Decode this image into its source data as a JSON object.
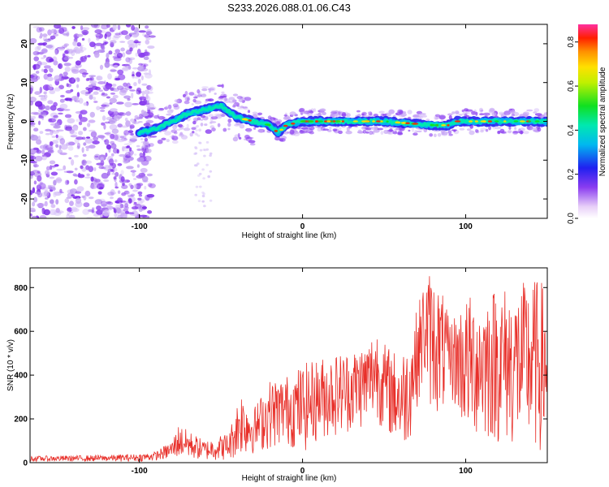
{
  "title": "S233.2026.088.01.06.C43",
  "chart_data": [
    {
      "type": "heatmap",
      "name": "spectrogram",
      "xlabel": "Height of straight line (km)",
      "ylabel": "Frequency (Hz)",
      "xlim": [
        -167,
        150
      ],
      "ylim": [
        -25,
        25
      ],
      "xticks": [
        -100,
        0,
        100
      ],
      "yticks": [
        -20,
        -10,
        0,
        10,
        20
      ],
      "colorbar": {
        "label": "Normalized spectral amplitude",
        "range": [
          0,
          0.88
        ],
        "ticks": [
          0.0,
          0.2,
          0.4,
          0.6,
          0.8
        ]
      },
      "ridge": {
        "x": [
          -100,
          -90,
          -80,
          -70,
          -60,
          -50,
          -40,
          -30,
          -20,
          -15,
          -10,
          0,
          20,
          50,
          80,
          90,
          95,
          100,
          120,
          150
        ],
        "freq": [
          -3,
          -2,
          0,
          2,
          3,
          4,
          1,
          0,
          -1,
          -3,
          -1,
          0,
          0,
          0,
          -1,
          -1,
          0,
          0,
          0,
          0
        ]
      }
    },
    {
      "type": "line",
      "name": "snr",
      "xlabel": "Height of straight line (km)",
      "ylabel": "SNR (10 * v/v)",
      "xlim": [
        -167,
        150
      ],
      "ylim": [
        0,
        890
      ],
      "xticks": [
        -100,
        0,
        100
      ],
      "yticks": [
        0,
        200,
        400,
        600,
        800
      ],
      "color": "#e8302a",
      "envelope": {
        "x": [
          -167,
          -120,
          -100,
          -90,
          -80,
          -76,
          -60,
          -45,
          -38,
          -30,
          -20,
          -10,
          0,
          10,
          20,
          30,
          40,
          45,
          50,
          55,
          60,
          65,
          70,
          75,
          78,
          85,
          90,
          100,
          110,
          120,
          130,
          140,
          150
        ],
        "upper": [
          30,
          35,
          40,
          50,
          100,
          175,
          100,
          140,
          340,
          250,
          380,
          400,
          450,
          480,
          500,
          520,
          560,
          640,
          550,
          520,
          500,
          560,
          700,
          860,
          880,
          800,
          650,
          760,
          780,
          820,
          800,
          850,
          820
        ],
        "lower": [
          5,
          5,
          5,
          10,
          15,
          20,
          10,
          10,
          30,
          40,
          60,
          80,
          40,
          100,
          120,
          140,
          160,
          200,
          140,
          100,
          60,
          80,
          250,
          350,
          250,
          200,
          300,
          120,
          100,
          80,
          60,
          40,
          40
        ]
      }
    }
  ]
}
